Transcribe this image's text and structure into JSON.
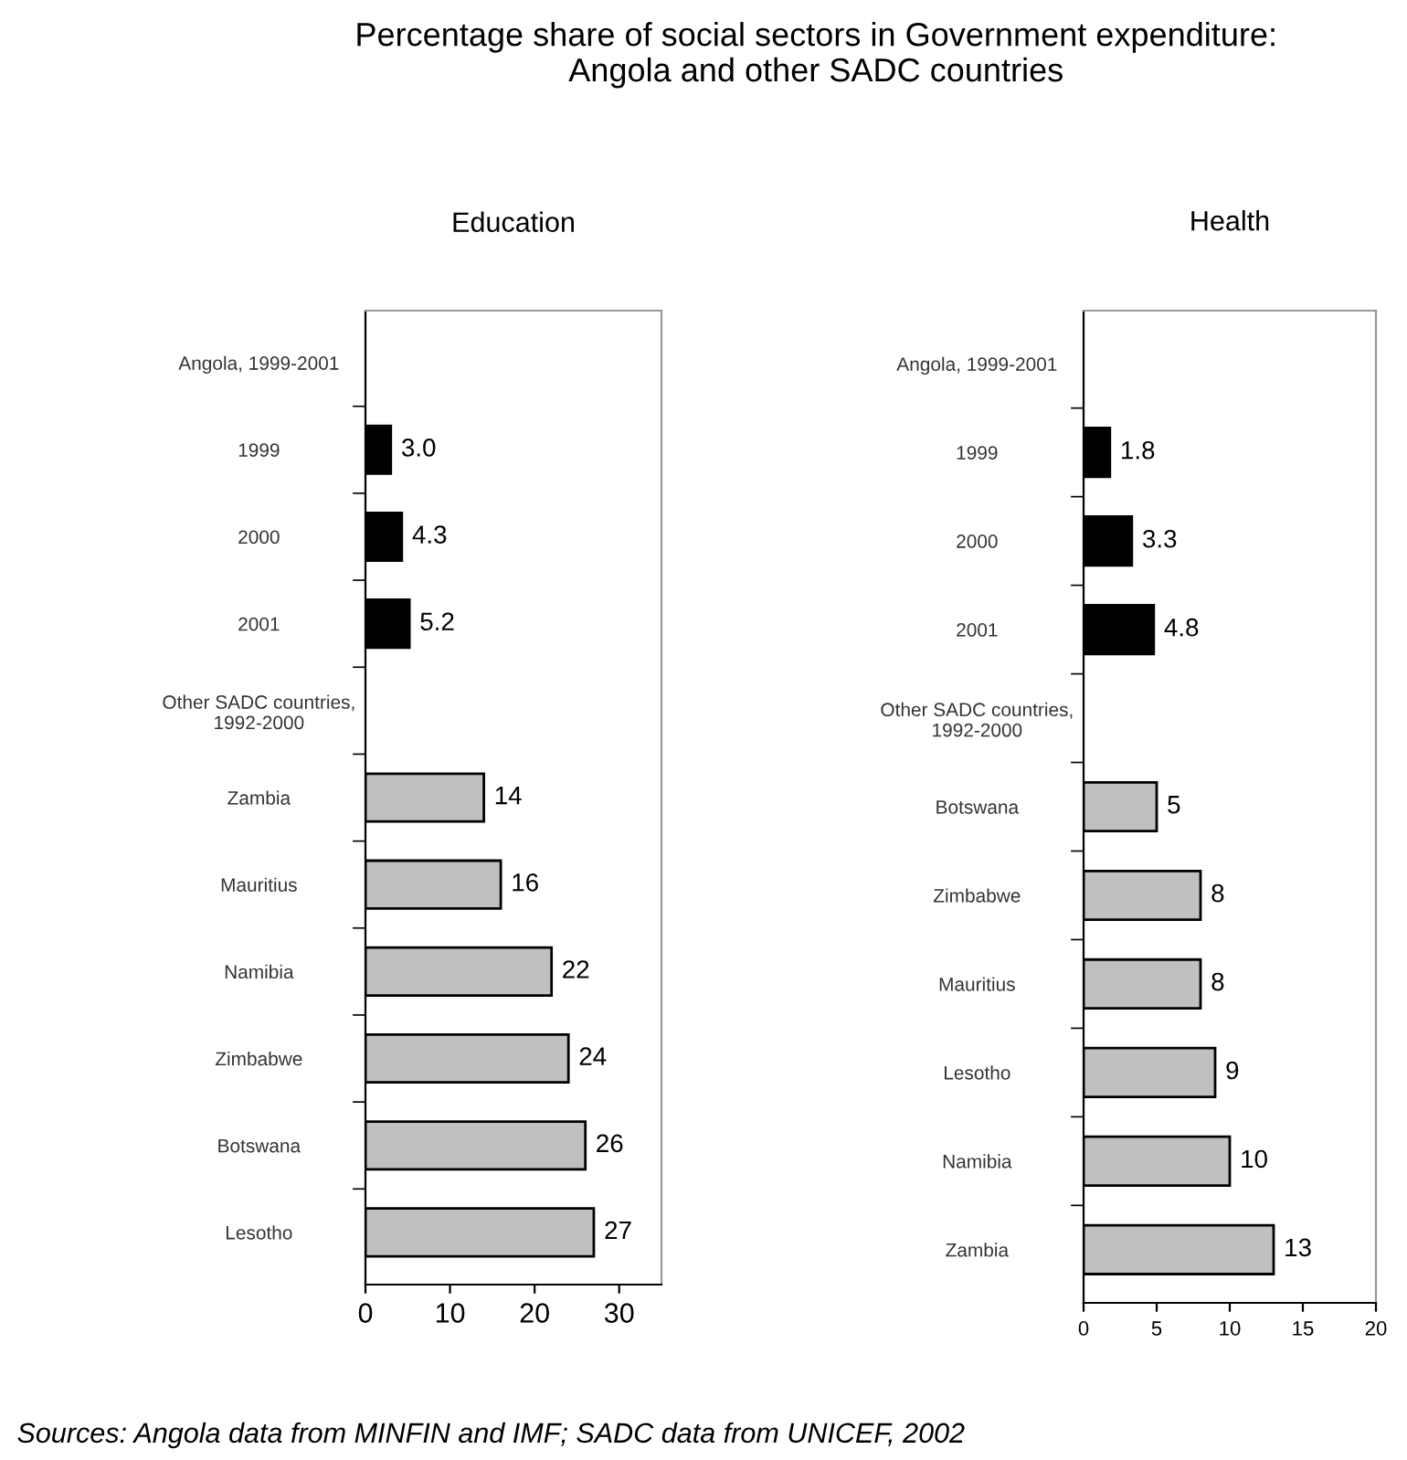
{
  "chart_data": [
    {
      "type": "bar",
      "orientation": "horizontal",
      "title": "Percentage share of social sectors in Government expenditure:\nAngola and other SADC countries",
      "subtitle": "Education",
      "categories": [
        "Angola, 1999-2001",
        "1999",
        "2000",
        "2001",
        "Other SADC countries,\n1992-2000",
        "Zambia",
        "Mauritius",
        "Namibia",
        "Zimbabwe",
        "Botswana",
        "Lesotho"
      ],
      "values": [
        null,
        3.0,
        4.3,
        5.2,
        null,
        14,
        16,
        22,
        24,
        26,
        27
      ],
      "colors": [
        null,
        "#000000",
        "#000000",
        "#000000",
        null,
        "#c0c0c0",
        "#c0c0c0",
        "#c0c0c0",
        "#c0c0c0",
        "#c0c0c0",
        "#c0c0c0"
      ],
      "value_labels": [
        null,
        "3.0",
        "4.3",
        "5.2",
        null,
        "14",
        "16",
        "22",
        "24",
        "26",
        "27"
      ],
      "xlim": [
        0,
        35
      ],
      "xticks": [
        0,
        10,
        20,
        30
      ],
      "grid": false,
      "legend": false,
      "annotations": [
        "Sources: Angola data from MINFIN and IMF; SADC data from UNICEF, 2002"
      ]
    },
    {
      "type": "bar",
      "orientation": "horizontal",
      "subtitle": "Health",
      "categories": [
        "Angola, 1999-2001",
        "1999",
        "2000",
        "2001",
        "Other SADC countries,\n1992-2000",
        "Botswana",
        "Zimbabwe",
        "Mauritius",
        "Lesotho",
        "Namibia",
        "Zambia"
      ],
      "values": [
        null,
        1.8,
        3.3,
        4.8,
        null,
        5,
        8,
        8,
        9,
        10,
        13
      ],
      "colors": [
        null,
        "#000000",
        "#000000",
        "#000000",
        null,
        "#c0c0c0",
        "#c0c0c0",
        "#c0c0c0",
        "#c0c0c0",
        "#c0c0c0",
        "#c0c0c0"
      ],
      "value_labels": [
        null,
        "1.8",
        "3.3",
        "4.8",
        null,
        "5",
        "8",
        "8",
        "9",
        "10",
        "13"
      ],
      "xlim": [
        0,
        20
      ],
      "xticks": [
        0,
        5,
        10,
        15,
        20
      ],
      "grid": false,
      "legend": false
    }
  ]
}
